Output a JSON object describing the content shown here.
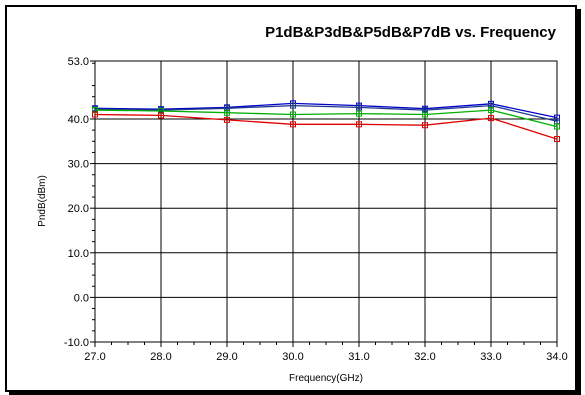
{
  "chart_data": {
    "type": "line",
    "title": "P1dB&P3dB&P5dB&P7dB vs. Frequency",
    "xlabel": "Frequency(GHz)",
    "ylabel": "PndB(dBm)",
    "x": [
      27.0,
      28.0,
      29.0,
      30.0,
      31.0,
      32.0,
      33.0,
      34.0
    ],
    "xlim": [
      27.0,
      34.0
    ],
    "ylim": [
      -10.0,
      53.0
    ],
    "x_ticks": [
      "27.0",
      "28.0",
      "29.0",
      "30.0",
      "31.0",
      "32.0",
      "33.0",
      "34.0"
    ],
    "y_ticks": [
      {
        "value": -10.0,
        "label": "-10.0"
      },
      {
        "value": 0.0,
        "label": "0.0"
      },
      {
        "value": 10.0,
        "label": "10.0"
      },
      {
        "value": 20.0,
        "label": "20.0"
      },
      {
        "value": 30.0,
        "label": "30.0"
      },
      {
        "value": 40.0,
        "label": "40.0"
      },
      {
        "value": 53.0,
        "label": "53.0"
      }
    ],
    "grid": true,
    "series": [
      {
        "color": "#0000c8",
        "marker": "square",
        "values": [
          42.4,
          42.2,
          42.6,
          43.5,
          43.0,
          42.3,
          43.4,
          40.3
        ]
      },
      {
        "color": "#1f3a8c",
        "marker": "square",
        "values": [
          42.2,
          42.0,
          42.4,
          43.0,
          42.6,
          42.0,
          43.0,
          39.5
        ]
      },
      {
        "color": "#00b000",
        "marker": "square",
        "values": [
          42.0,
          41.8,
          41.4,
          41.0,
          41.2,
          41.0,
          42.0,
          38.3
        ]
      },
      {
        "color": "#e00000",
        "marker": "square",
        "values": [
          41.0,
          40.8,
          39.8,
          38.8,
          38.8,
          38.6,
          40.2,
          35.5
        ]
      }
    ]
  }
}
